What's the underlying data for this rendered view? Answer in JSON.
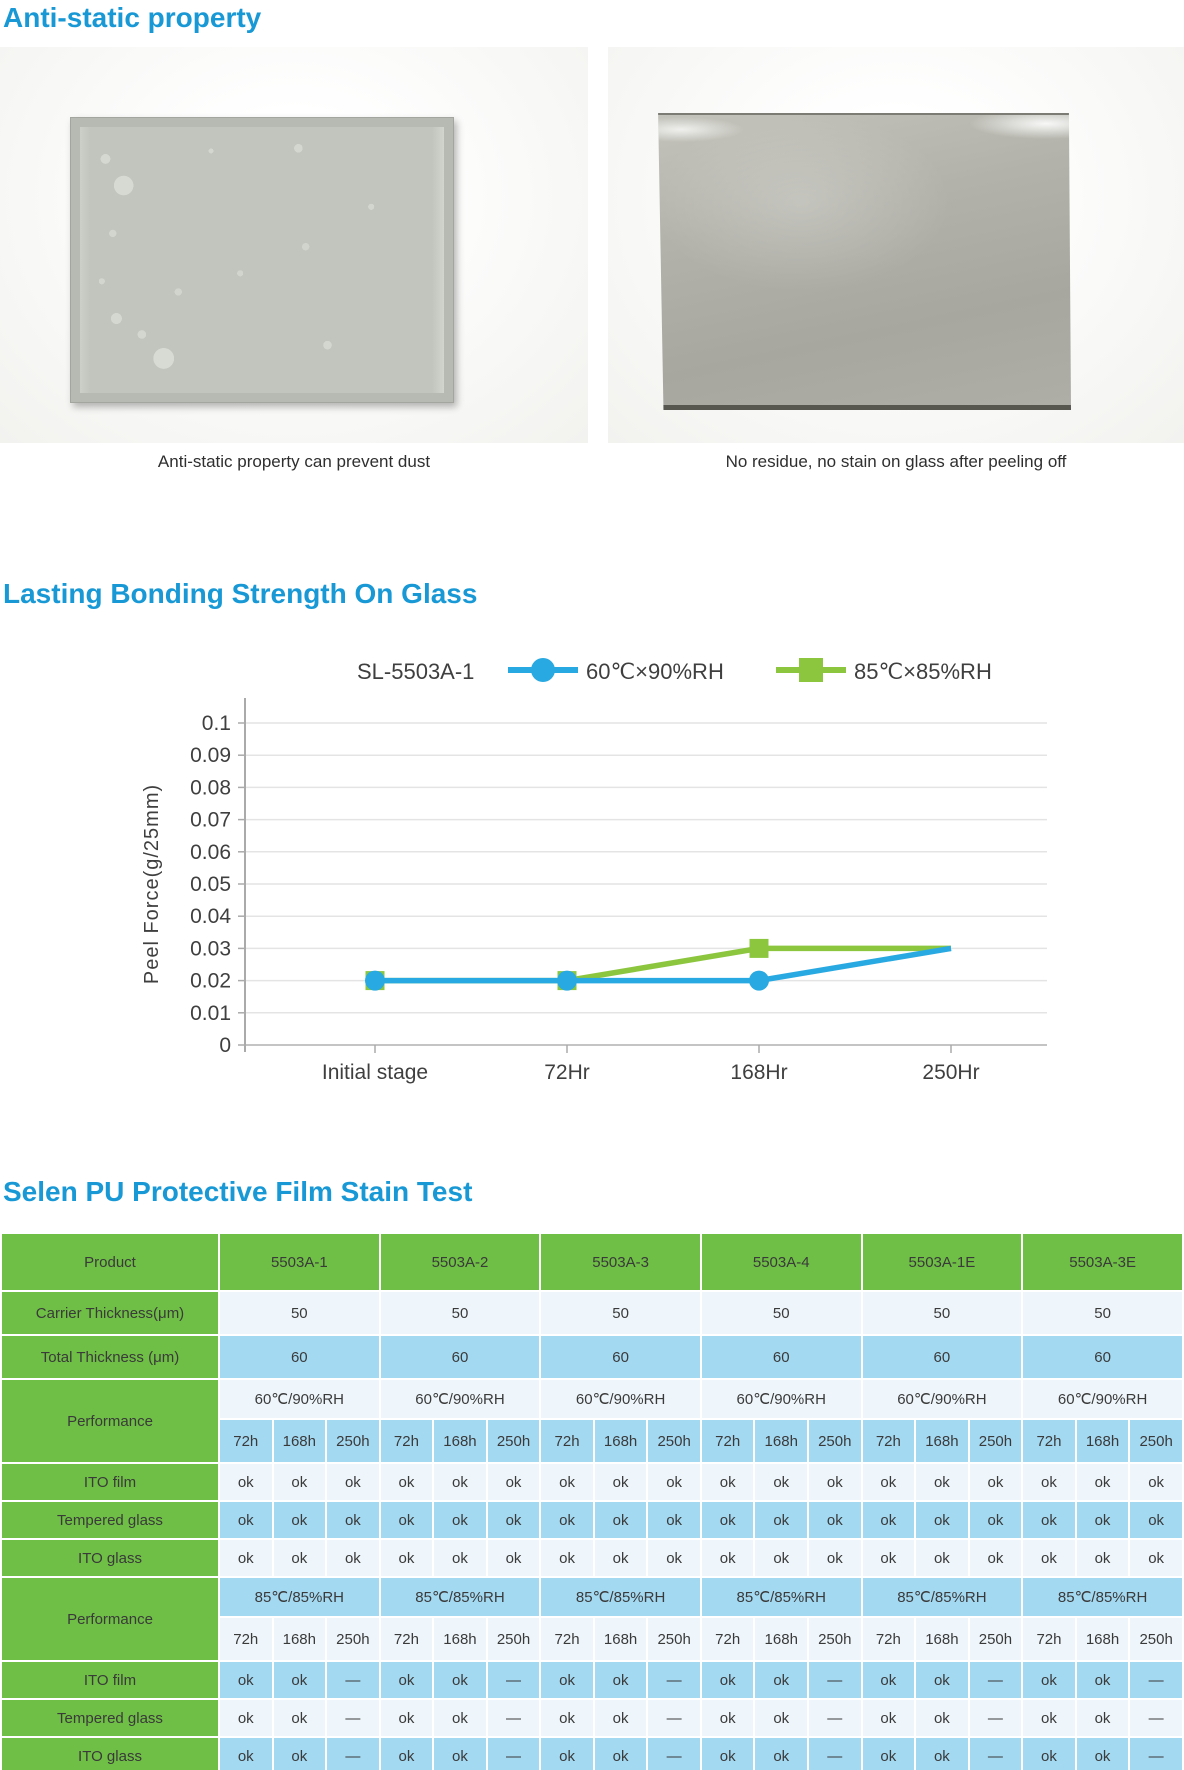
{
  "sections": {
    "antistatic": {
      "title": "Anti-static property",
      "captions": [
        "Anti-static property can prevent dust",
        "No residue, no stain on glass after peeling off"
      ]
    },
    "bonding": {
      "title": "Lasting Bonding Strength On Glass"
    },
    "stain": {
      "title": "Selen PU Protective Film Stain Test"
    }
  },
  "chart_data": {
    "type": "line",
    "title_label": "SL-5503A-1",
    "categories": [
      "Initial stage",
      "72Hr",
      "168Hr",
      "250Hr"
    ],
    "series": [
      {
        "name": "60℃×90%RH",
        "marker": "circle",
        "color": "#29a9e1",
        "values": [
          0.02,
          0.02,
          0.02,
          0.03
        ]
      },
      {
        "name": "85℃×85%RH",
        "marker": "square",
        "color": "#8cc63f",
        "values": [
          0.02,
          0.02,
          0.03,
          0.03
        ]
      }
    ],
    "ylabel": "Peel Force(g/25mm)",
    "xlabel": "",
    "ylim": [
      0,
      0.1
    ],
    "ytick_step": 0.01,
    "grid": true,
    "legend_position": "top",
    "marker_on_final_point": false
  },
  "table": {
    "header": {
      "label": "Product",
      "columns": [
        "5503A-1",
        "5503A-2",
        "5503A-3",
        "5503A-4",
        "5503A-1E",
        "5503A-3E"
      ]
    },
    "simple_rows": [
      {
        "label": "Carrier Thickness(μm)",
        "value": "50",
        "tone": "light"
      },
      {
        "label": "Total Thickness (μm)",
        "value": "60",
        "tone": "blue"
      }
    ],
    "sections": [
      {
        "performance_label": "Performance",
        "condition": "60℃/90%RH",
        "condition_tone": "light",
        "hours": [
          "72h",
          "168h",
          "250h"
        ],
        "hours_tone": "blue",
        "rows": [
          {
            "label": "ITO film",
            "cells": [
              "ok",
              "ok",
              "ok"
            ],
            "tone": "light"
          },
          {
            "label": "Tempered glass",
            "cells": [
              "ok",
              "ok",
              "ok"
            ],
            "tone": "blue"
          },
          {
            "label": "ITO glass",
            "cells": [
              "ok",
              "ok",
              "ok"
            ],
            "tone": "light"
          }
        ]
      },
      {
        "performance_label": "Performance",
        "condition": "85℃/85%RH",
        "condition_tone": "blue",
        "hours": [
          "72h",
          "168h",
          "250h"
        ],
        "hours_tone": "light",
        "rows": [
          {
            "label": "ITO film",
            "cells": [
              "ok",
              "ok",
              "—"
            ],
            "tone": "blue"
          },
          {
            "label": "Tempered glass",
            "cells": [
              "ok",
              "ok",
              "—"
            ],
            "tone": "light"
          },
          {
            "label": "ITO glass",
            "cells": [
              "ok",
              "ok",
              "—"
            ],
            "tone": "blue"
          }
        ]
      }
    ]
  },
  "colors": {
    "heading_blue": "#1899d6",
    "table_green": "#6fbe46",
    "table_blue": "#a4d9f2",
    "table_light": "#eef6fb",
    "series_blue": "#29a9e1",
    "series_green": "#8cc63f"
  }
}
